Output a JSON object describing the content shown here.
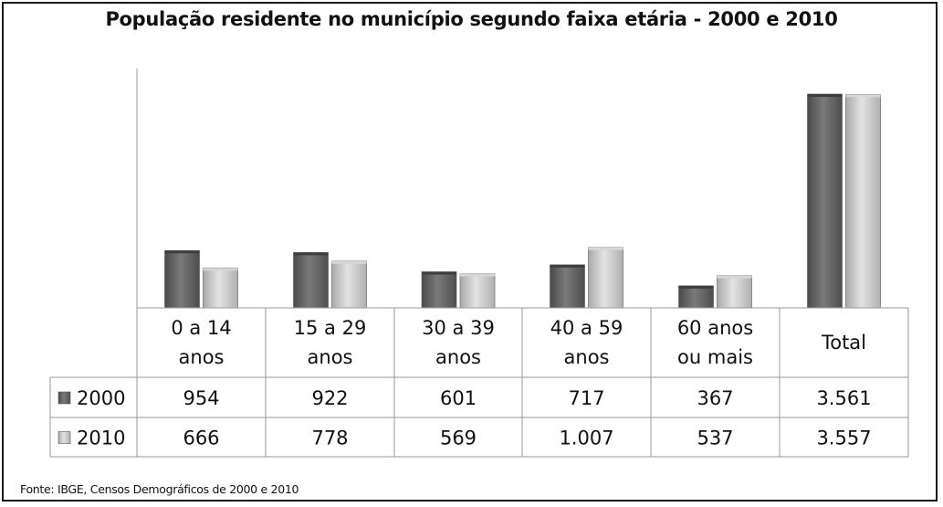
{
  "chart_data": {
    "type": "bar",
    "title": "População residente no município segundo faixa etária - 2000 e 2010",
    "categories": [
      [
        "0 a 14",
        "anos"
      ],
      [
        "15 a 29",
        "anos"
      ],
      [
        "30 a 39",
        "anos"
      ],
      [
        "40 a 59",
        "anos"
      ],
      [
        "60 anos",
        "ou mais"
      ],
      [
        "Total"
      ]
    ],
    "series": [
      {
        "name": "2000",
        "values": [
          954,
          922,
          601,
          717,
          367,
          3561
        ],
        "labels": [
          "954",
          "922",
          "601",
          "717",
          "367",
          "3.561"
        ],
        "color": "#6b6b6b"
      },
      {
        "name": "2010",
        "values": [
          666,
          778,
          569,
          1007,
          537,
          3557
        ],
        "labels": [
          "666",
          "778",
          "569",
          "1.007",
          "537",
          "3.557"
        ],
        "color": "#c4c4c4"
      }
    ],
    "grid": false,
    "legend": "data-table"
  },
  "source": "Fonte: IBGE, Censos Demográficos de 2000 e 2010"
}
